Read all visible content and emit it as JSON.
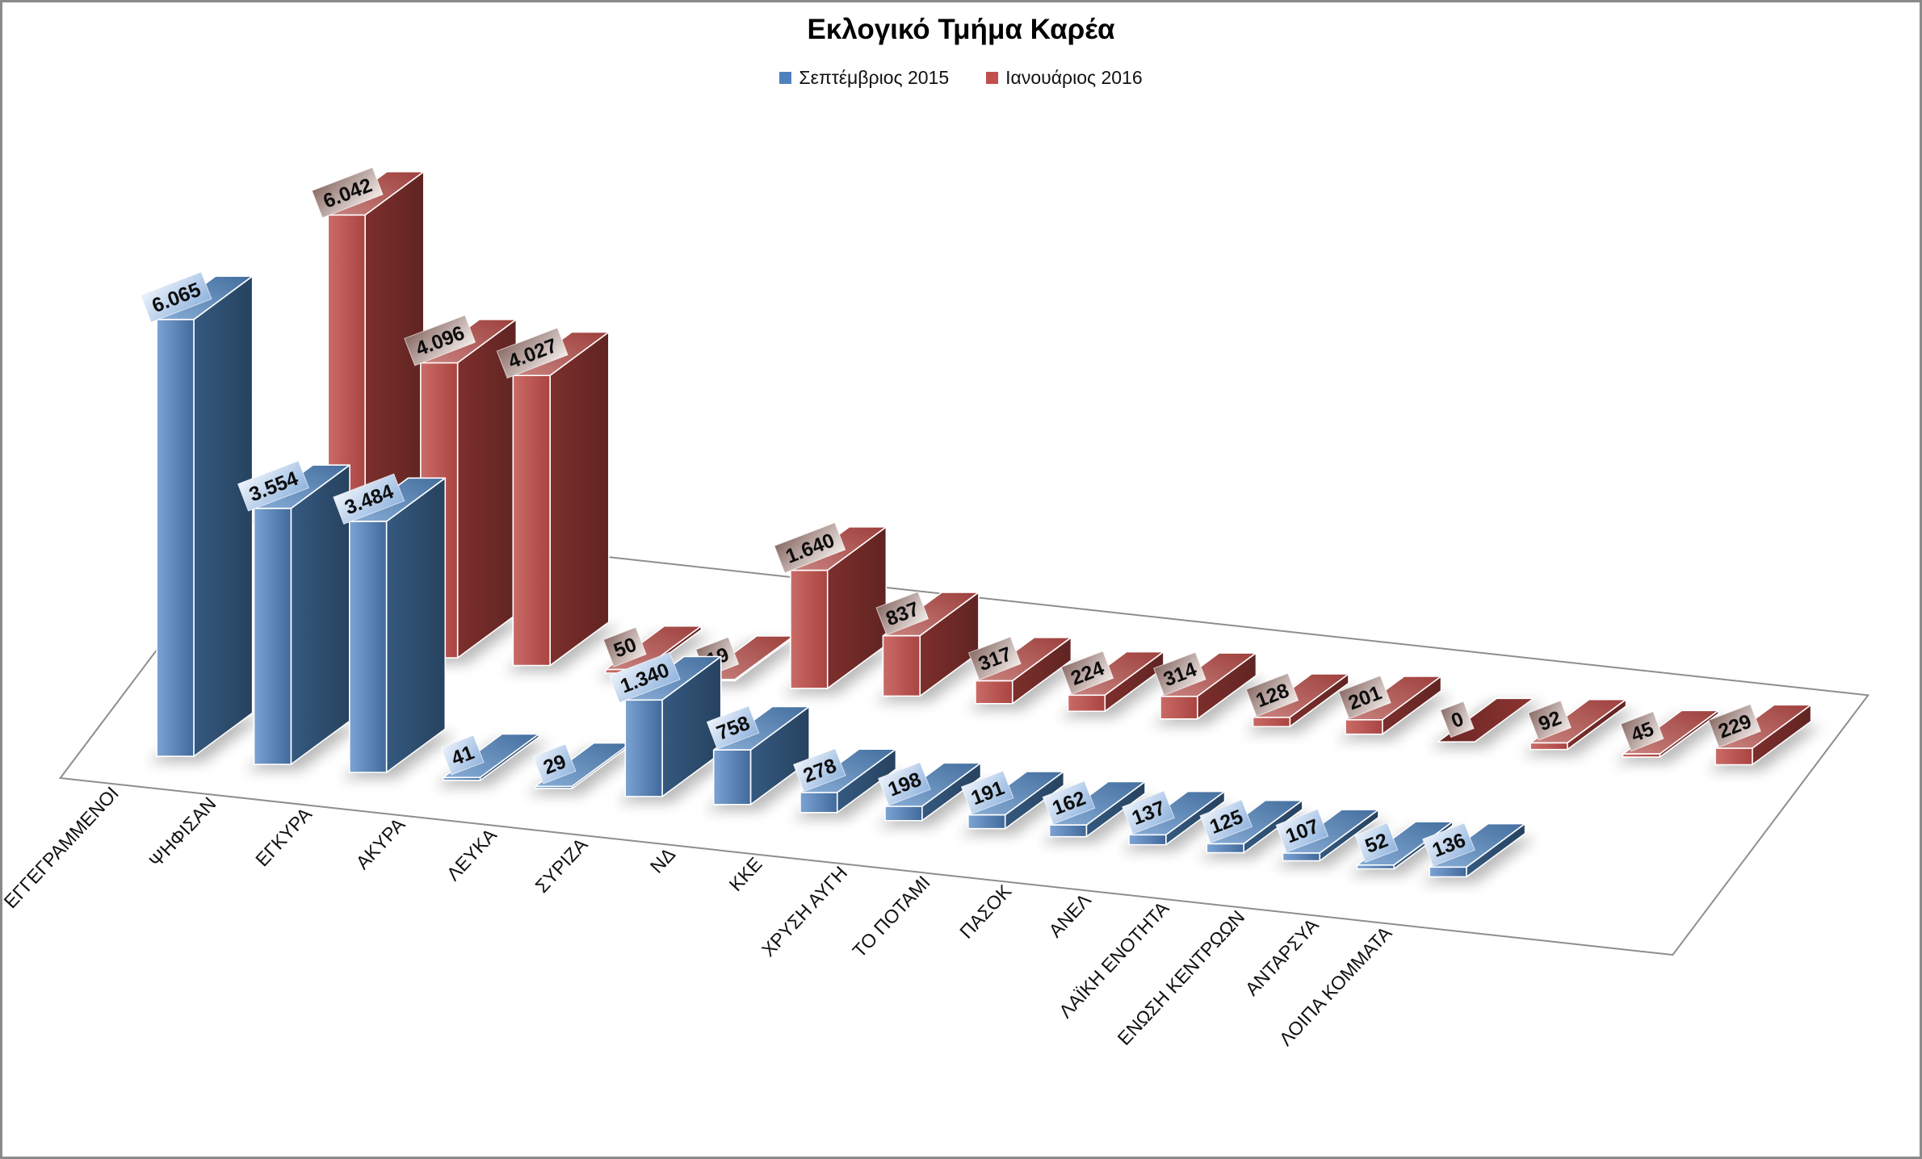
{
  "title": "Εκλογικό Τμήμα Καρέα",
  "legend": {
    "items": [
      {
        "label": "Σεπτέμβριος 2015",
        "color": "#4F81BD"
      },
      {
        "label": "Ιανουάριος 2016",
        "color": "#C0504D"
      }
    ]
  },
  "frame": {
    "border_color": "#8a8a8a",
    "background": "#ffffff",
    "floor_stroke": "#8e8e8e"
  },
  "chart_data": {
    "type": "bar",
    "projection": "3d-perspective",
    "title": "Εκλογικό Τμήμα Καρέα",
    "legend_position": "top",
    "value_axis_visible": false,
    "grid": false,
    "categories": [
      "ΕΓΓΕΓΡΑΜΜΕΝΟΙ",
      "ΨΗΦΙΣΑΝ",
      "ΕΓΚΥΡΑ",
      "ΑΚΥΡΑ",
      "ΛΕΥΚΑ",
      "ΣΥΡΙΖΑ",
      "ΝΔ",
      "ΚΚΕ",
      "ΧΡΥΣΗ ΑΥΓΗ",
      "ΤΟ ΠΟΤΑΜΙ",
      "ΠΑΣΟΚ",
      "ΑΝΕΛ",
      "ΛΑΪΚΗ ΕΝΟΤΗΤΑ",
      "ΕΝΩΣΗ ΚΕΝΤΡΩΩΝ",
      "ΑΝΤΑΡΣΥΑ",
      "ΛΟΙΠΑ ΚΟΜΜΑΤΑ"
    ],
    "series": [
      {
        "name": "Σεπτέμβριος 2015",
        "row": "front",
        "values": [
          6065,
          3554,
          3484,
          41,
          29,
          1340,
          758,
          278,
          198,
          191,
          162,
          137,
          125,
          107,
          52,
          136
        ],
        "labels": [
          "6.065",
          "3.554",
          "3.484",
          "41",
          "29",
          "1.340",
          "758",
          "278",
          "198",
          "191",
          "162",
          "137",
          "125",
          "107",
          "52",
          "136"
        ],
        "colors": {
          "legend": "#4F81BD",
          "front": [
            "#7ba3d4",
            "#41699b"
          ],
          "side": [
            "#35597f",
            "#26425f"
          ],
          "top": [
            "#88add6",
            "#436e9e"
          ],
          "tile": [
            "#edf3fb",
            "#8fb3de"
          ],
          "zero": [
            "#2c4a6e",
            "#3c5f8a"
          ]
        }
      },
      {
        "name": "Ιανουάριος 2016",
        "row": "back",
        "values": [
          6042,
          4096,
          4027,
          50,
          19,
          1640,
          837,
          317,
          224,
          314,
          128,
          201,
          0,
          92,
          45,
          229
        ],
        "labels": [
          "6.042",
          "4.096",
          "4.027",
          "50",
          "19",
          "1.640",
          "837",
          "317",
          "224",
          "314",
          "128",
          "201",
          "0",
          "92",
          "45",
          "229"
        ],
        "colors": {
          "legend": "#C0504D",
          "front": [
            "#ca6b67",
            "#a94441"
          ],
          "side": [
            "#7d2f2c",
            "#602422"
          ],
          "top": [
            "#c9837f",
            "#9d3f3c"
          ],
          "tile": [
            "#8a6b66",
            "#f2ece9"
          ],
          "zero": [
            "#6b2624",
            "#8c3431"
          ]
        }
      }
    ]
  }
}
